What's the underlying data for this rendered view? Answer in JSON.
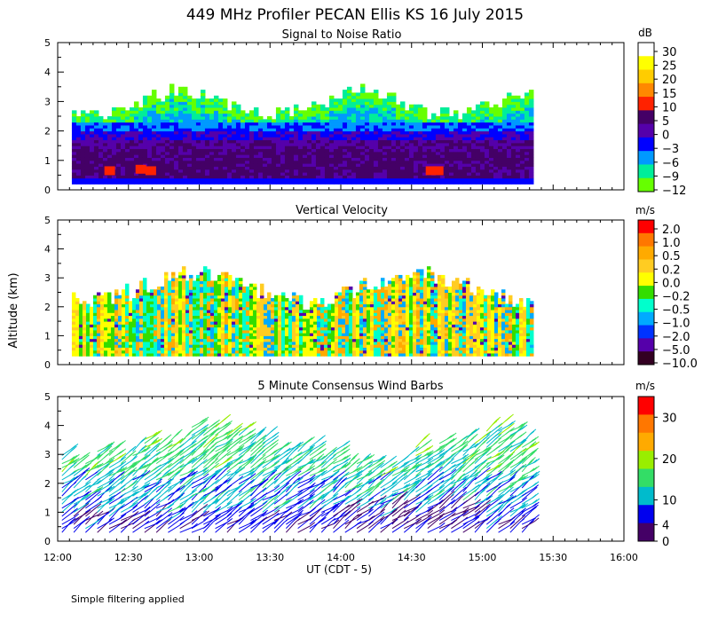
{
  "title": "449 MHz Profiler PECAN Ellis KS 16 July 2015",
  "y_axis_label": "Altitude (km)",
  "x_axis_label": "UT  (CDT - 5)",
  "footnote": "Simple filtering applied",
  "colors": {
    "frame": "#000000",
    "background": "#ffffff"
  },
  "chart_data": [
    {
      "type": "heatmap",
      "title": "Signal to Noise Ratio",
      "units": "dB",
      "ylim": [
        0,
        5
      ],
      "yticks": [
        0,
        1,
        2,
        3,
        4,
        5
      ],
      "xlim_hours": [
        12.0,
        16.0
      ],
      "data_extent_hours": [
        12.1,
        15.35
      ],
      "colorbar": {
        "labels": [
          "30",
          "25",
          "20",
          "15",
          "10",
          "5",
          "0",
          "−3",
          "−6",
          "−9",
          "−12"
        ],
        "colors": [
          "#ffffff",
          "#ffff00",
          "#ffcc00",
          "#ff8800",
          "#ff2200",
          "#440066",
          "#5500aa",
          "#0000ff",
          "#0099ff",
          "#00ee99",
          "#66ff00"
        ]
      }
    },
    {
      "type": "heatmap",
      "title": "Vertical Velocity",
      "units": "m/s",
      "ylim": [
        0,
        5
      ],
      "yticks": [
        0,
        1,
        2,
        3,
        4,
        5
      ],
      "xlim_hours": [
        12.0,
        16.0
      ],
      "data_extent_hours": [
        12.1,
        15.35
      ],
      "colorbar": {
        "labels": [
          "2.0",
          "1.0",
          "0.5",
          "0.2",
          "0.0",
          "−0.2",
          "−0.5",
          "−1.0",
          "−2.0",
          "−5.0",
          "−10.0"
        ],
        "colors": [
          "#ff0000",
          "#ff7700",
          "#ffaa00",
          "#ffcc22",
          "#ffff00",
          "#33dd00",
          "#00ffcc",
          "#00aaff",
          "#0033ff",
          "#5500aa",
          "#330022"
        ]
      }
    },
    {
      "type": "scatter",
      "title": "5 Minute Consensus Wind Barbs",
      "units": "m/s",
      "ylim": [
        0,
        5
      ],
      "yticks": [
        0,
        1,
        2,
        3,
        4,
        5
      ],
      "xlim_hours": [
        12.0,
        16.0
      ],
      "data_extent_hours": [
        12.0,
        15.35
      ],
      "colorbar": {
        "labels": [
          "30",
          "20",
          "10",
          "4",
          "0"
        ],
        "label_values": [
          30,
          20,
          10,
          4,
          0
        ],
        "range": [
          0,
          35
        ],
        "colors": [
          "#ff0000",
          "#ff7700",
          "#ffaa00",
          "#99ee00",
          "#33dd66",
          "#00bbcc",
          "#0000ee",
          "#440066"
        ]
      }
    }
  ],
  "x_axis": {
    "tick_hours": [
      12.0,
      12.5,
      13.0,
      13.5,
      14.0,
      14.5,
      15.0,
      15.5,
      16.0
    ],
    "tick_labels": [
      "12:00",
      "12:30",
      "13:00",
      "13:30",
      "14:00",
      "14:30",
      "15:00",
      "15:30",
      "16:00"
    ]
  }
}
